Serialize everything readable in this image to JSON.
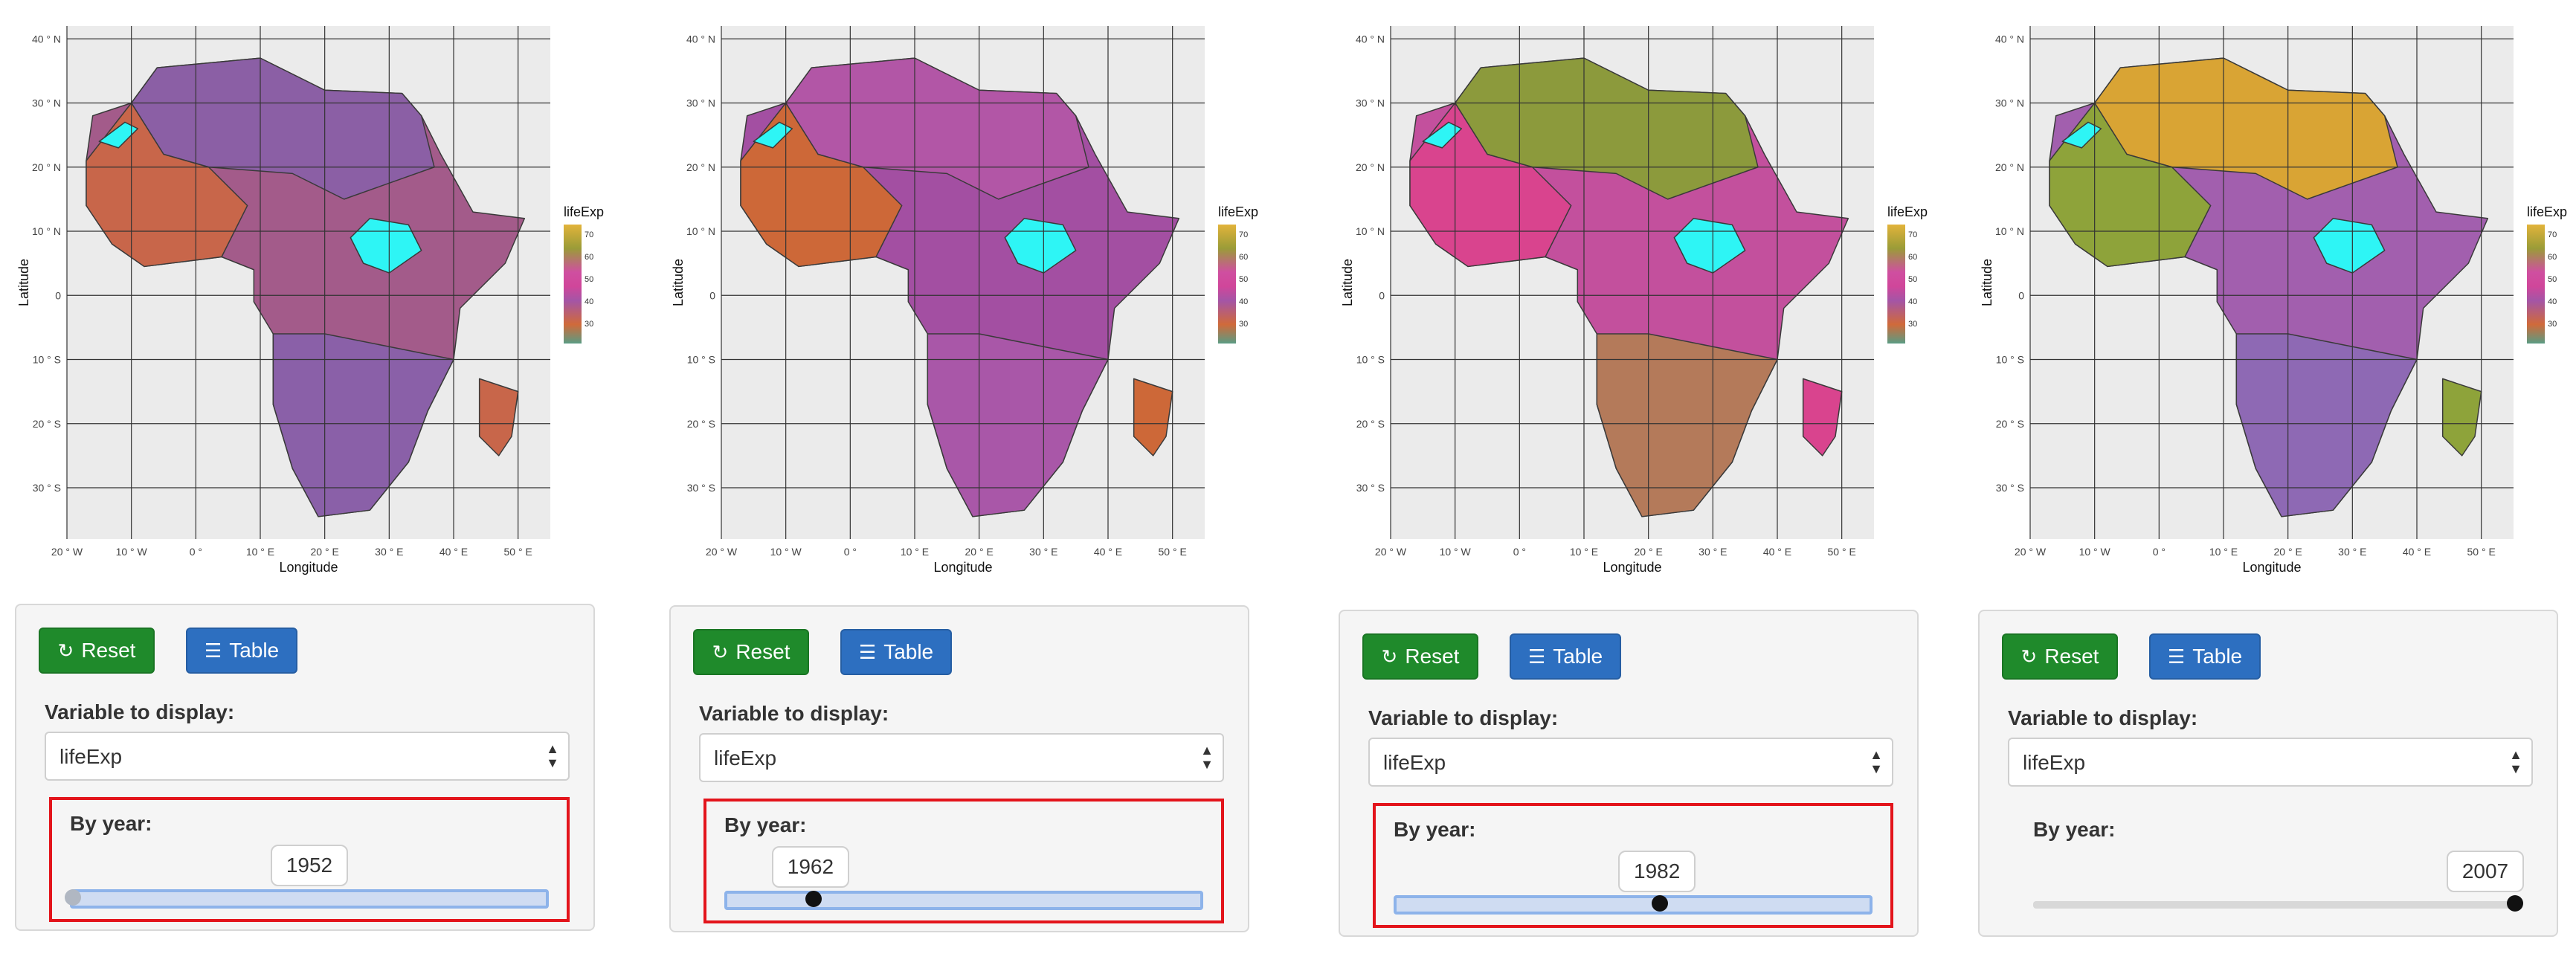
{
  "map_axes": {
    "lat_ticks": [
      "40 ° N",
      "30 ° N",
      "20 ° N",
      "10 ° N",
      "0",
      "10 ° S",
      "20 ° S",
      "30 ° S"
    ],
    "lon_ticks": [
      "20 ° W",
      "10 ° W",
      "0 °",
      "10 ° E",
      "20 ° E",
      "30 ° E",
      "40 ° E",
      "50 ° E"
    ],
    "xlabel": "Longitude",
    "ylabel": "Latitude"
  },
  "legend": {
    "title": "lifeExp",
    "ticks": [
      "70",
      "60",
      "50",
      "40",
      "30"
    ]
  },
  "colors": {
    "map_background": "#ebebeb",
    "gridline": "#333333",
    "highlight_region": "#2ef5f5",
    "reset_button": "#1f8a2b",
    "table_button": "#2d6fc0",
    "highlight_box": "#e3141b"
  },
  "apps": [
    {
      "year": "1952",
      "handle_fraction": 0.0,
      "year_box_highlighted": true,
      "continent_color": "#a35b8a",
      "sahara_color": "#8b5fa5",
      "west_color": "#c8664a",
      "south_color": "#8a60a8",
      "buttons": {
        "reset": "Reset",
        "table": "Table"
      },
      "variable_label": "Variable to display:",
      "variable_value": "lifeExp",
      "year_label": "By year:"
    },
    {
      "year": "1962",
      "handle_fraction": 0.18,
      "year_box_highlighted": true,
      "continent_color": "#a34fa2",
      "sahara_color": "#b256a6",
      "west_color": "#cd6838",
      "south_color": "#a957a8",
      "buttons": {
        "reset": "Reset",
        "table": "Table"
      },
      "variable_label": "Variable to display:",
      "variable_value": "lifeExp",
      "year_label": "By year:"
    },
    {
      "year": "1982",
      "handle_fraction": 0.55,
      "year_box_highlighted": true,
      "continent_color": "#c3509d",
      "sahara_color": "#8c9a3c",
      "west_color": "#d9448e",
      "south_color": "#b47a5a",
      "buttons": {
        "reset": "Reset",
        "table": "Table"
      },
      "variable_label": "Variable to display:",
      "variable_value": "lifeExp",
      "year_label": "By year:"
    },
    {
      "year": "2007",
      "handle_fraction": 1.0,
      "year_box_highlighted": false,
      "continent_color": "#a25fae",
      "sahara_color": "#d9a434",
      "west_color": "#8ea33a",
      "south_color": "#8e69b4",
      "buttons": {
        "reset": "Reset",
        "table": "Table"
      },
      "variable_label": "Variable to display:",
      "variable_value": "lifeExp",
      "year_label": "By year:"
    }
  ]
}
